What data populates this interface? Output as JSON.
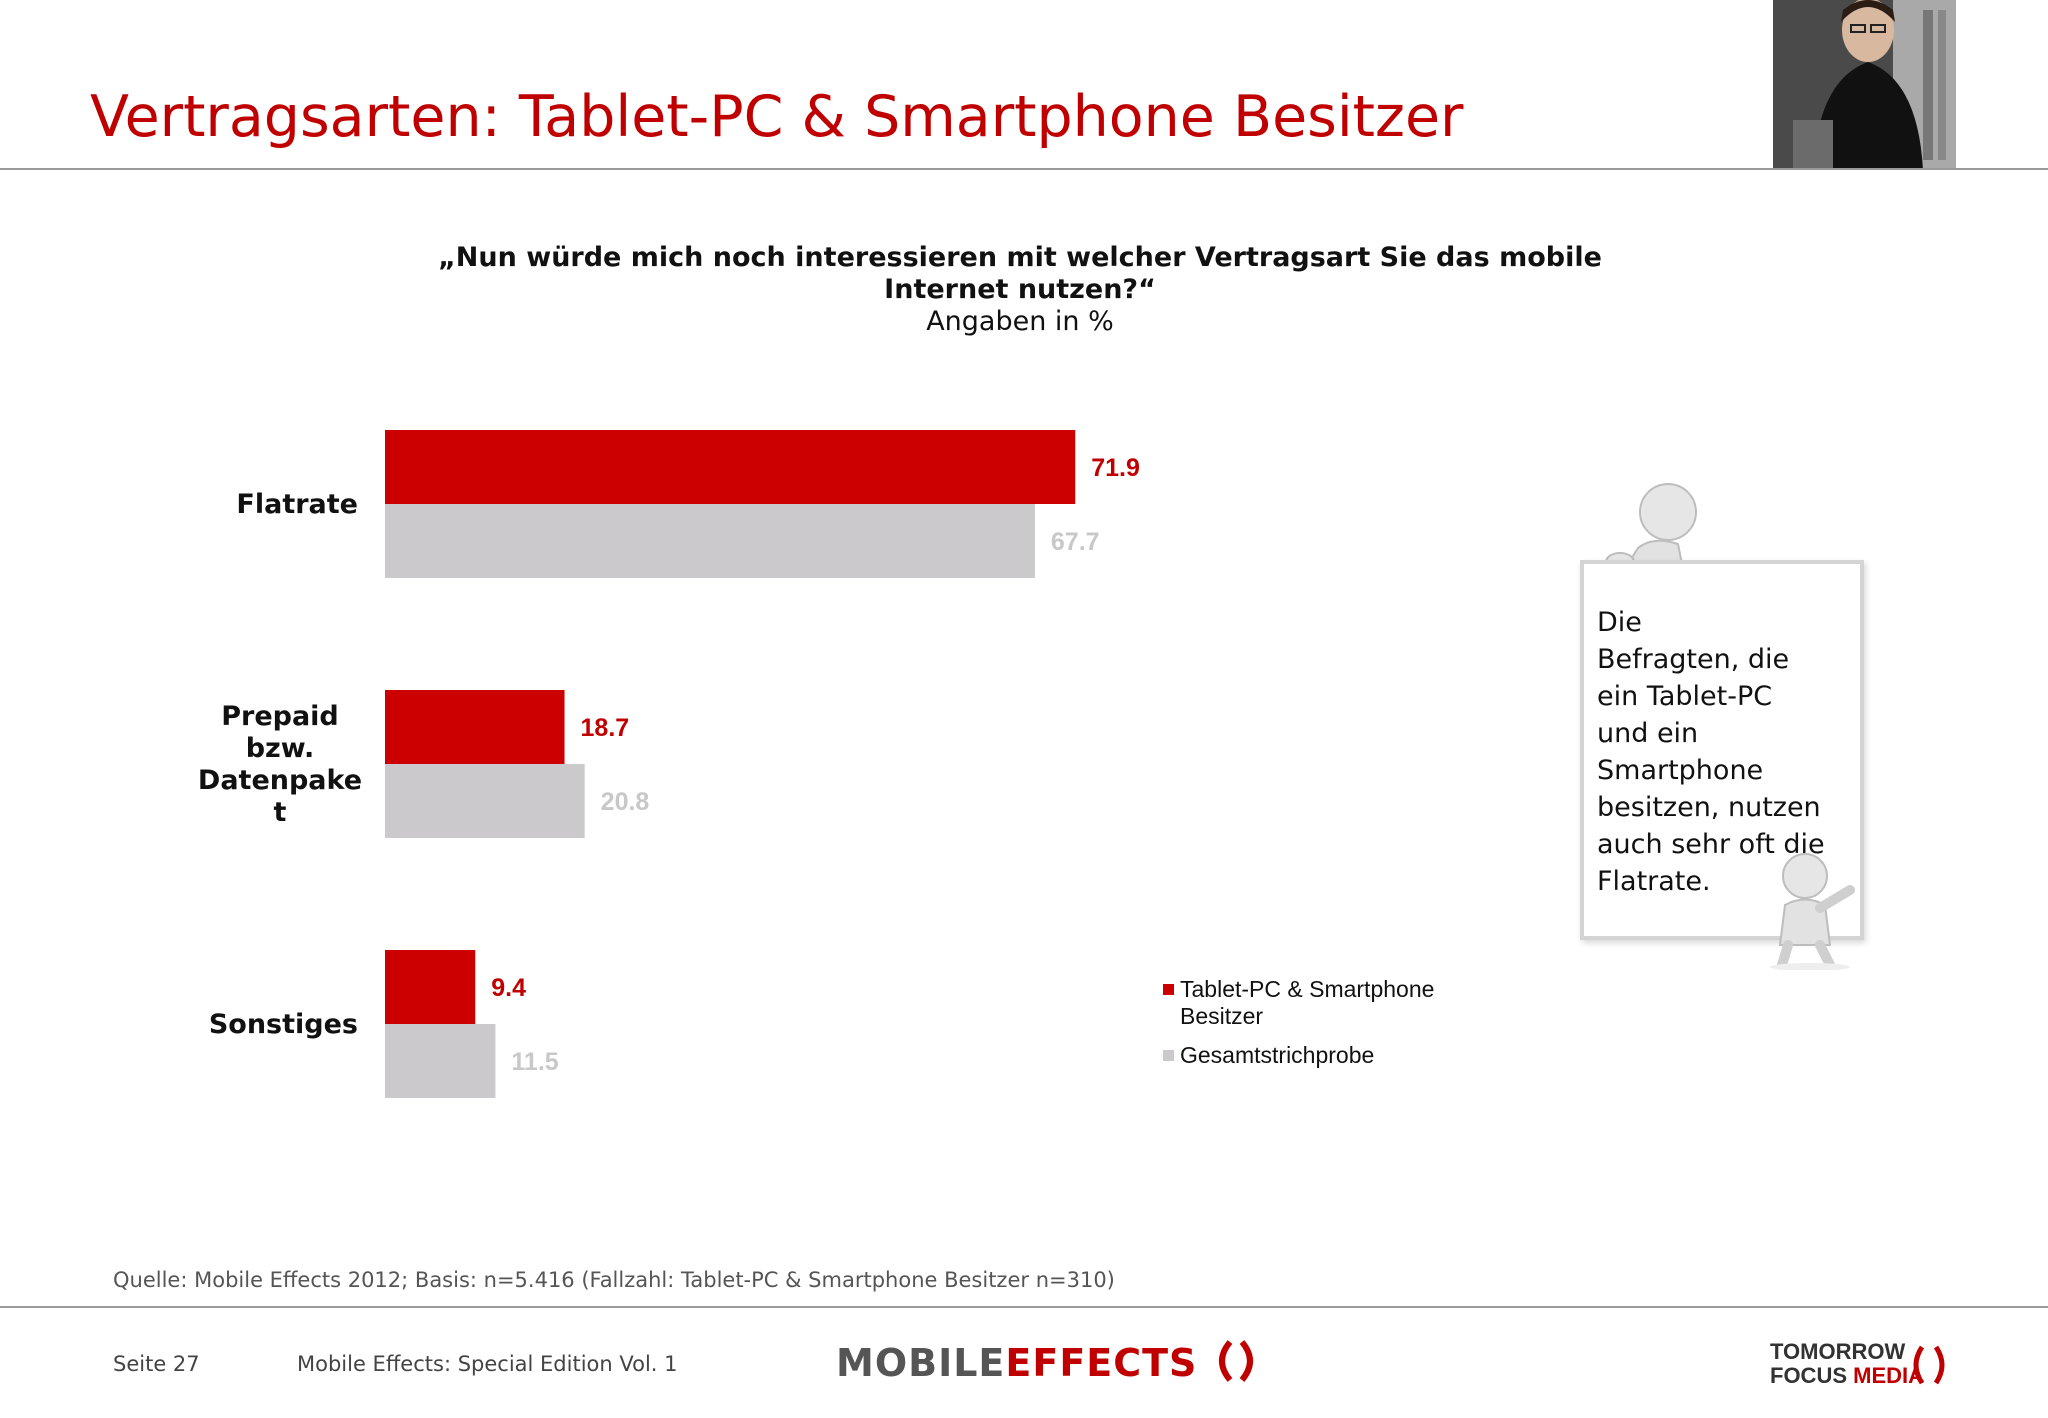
{
  "header": {
    "title": "Vertragsarten: Tablet-PC & Smartphone Besitzer"
  },
  "question": {
    "line1": "„Nun würde mich noch interessieren mit welcher Vertragsart Sie das mobile",
    "line2": "Internet nutzen?“",
    "subtitle": "Angaben in %"
  },
  "chart_data": {
    "type": "bar",
    "orientation": "horizontal",
    "categories": [
      "Flatrate",
      "Prepaid bzw. Datenpaket",
      "Sonstiges"
    ],
    "category_lines": [
      [
        "Flatrate"
      ],
      [
        "Prepaid",
        "bzw.",
        "Datenpake",
        "t"
      ],
      [
        "Sonstiges"
      ]
    ],
    "series": [
      {
        "name": "Tablet-PC & Smartphone Besitzer",
        "values": [
          71.9,
          18.7,
          9.4
        ],
        "color": "#cc0000",
        "label_color": "#c00000"
      },
      {
        "name": "Gesamtstrichprobe",
        "values": [
          67.7,
          20.8,
          11.5
        ],
        "color": "#ccc9cc",
        "label_color": "#c8c8c8"
      }
    ],
    "xlim": [
      0,
      100
    ],
    "grid": false,
    "legend_position": "bottom-right"
  },
  "legend": {
    "item1_line1": "Tablet-PC & Smartphone",
    "item1_line2": "Besitzer",
    "item2": "Gesamtstrichprobe"
  },
  "note": {
    "lines": [
      "Die",
      "Befragten, die",
      "ein Tablet-PC",
      "und ein",
      "Smartphone",
      "besitzen, nutzen",
      "auch sehr oft die",
      "Flatrate."
    ]
  },
  "footer": {
    "source": "Quelle: Mobile Effects 2012; Basis: n=5.416 (Fallzahl: Tablet-PC & Smartphone Besitzer n=310)",
    "page": "Seite 27",
    "edition": "Mobile Effects: Special Edition Vol. 1",
    "logo_mobile": "MOBILE",
    "logo_effects": "EFFECTS",
    "tfm_line1": "TOMORROW",
    "tfm_line2a": "FOCUS",
    "tfm_line2b": "MEDIA"
  }
}
